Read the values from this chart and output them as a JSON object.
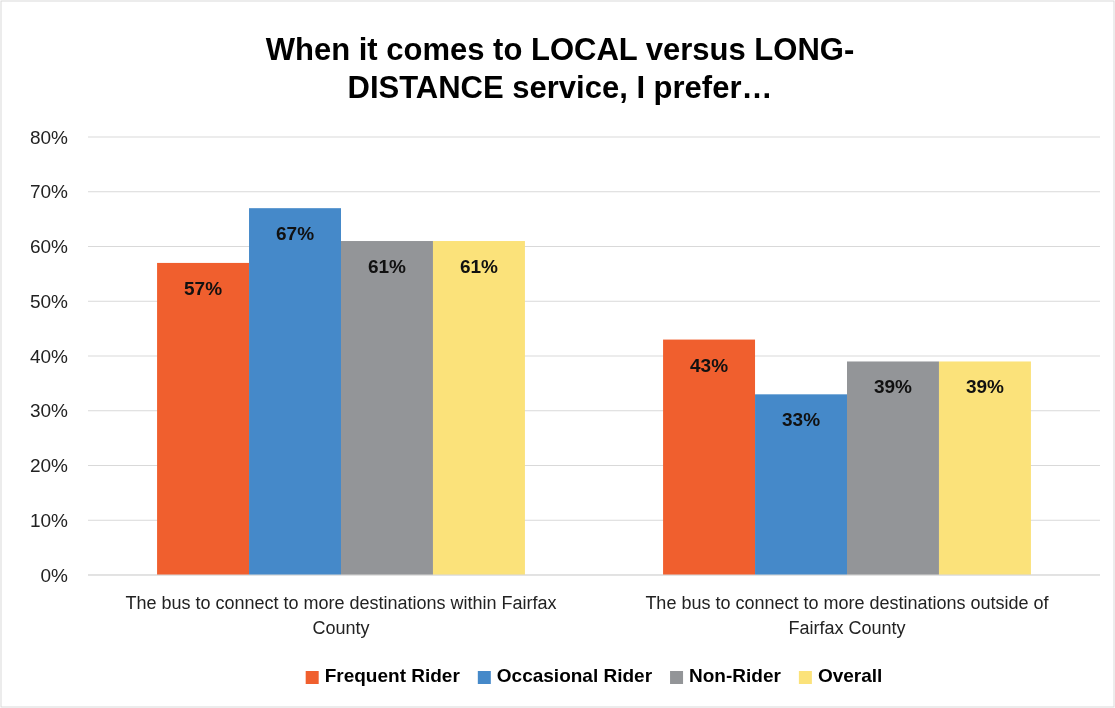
{
  "chart_data": {
    "type": "bar",
    "title": "When it comes to LOCAL versus LONG-DISTANCE service, I prefer…",
    "categories": [
      "The bus to connect to more destinations within Fairfax County",
      "The bus to connect to more destinations outside of Fairfax County"
    ],
    "series": [
      {
        "name": "Frequent Rider",
        "color": "#f05f2e",
        "values": [
          57,
          43
        ],
        "value_labels": [
          "57%",
          "43%"
        ]
      },
      {
        "name": "Occasional Rider",
        "color": "#4589c9",
        "values": [
          67,
          33
        ],
        "value_labels": [
          "67%",
          "33%"
        ]
      },
      {
        "name": "Non-Rider",
        "color": "#939598",
        "values": [
          61,
          39
        ],
        "value_labels": [
          "61%",
          "39%"
        ]
      },
      {
        "name": "Overall",
        "color": "#fbe27a",
        "values": [
          61,
          39
        ],
        "value_labels": [
          "61%",
          "39%"
        ]
      }
    ],
    "ylim": [
      0,
      80
    ],
    "yticks": [
      {
        "value": 0,
        "label": "0%"
      },
      {
        "value": 10,
        "label": "10%"
      },
      {
        "value": 20,
        "label": "20%"
      },
      {
        "value": 30,
        "label": "30%"
      },
      {
        "value": 40,
        "label": "40%"
      },
      {
        "value": 50,
        "label": "50%"
      },
      {
        "value": 60,
        "label": "60%"
      },
      {
        "value": 70,
        "label": "70%"
      },
      {
        "value": 80,
        "label": "80%"
      }
    ],
    "grid": "y",
    "legend": "bottom"
  }
}
